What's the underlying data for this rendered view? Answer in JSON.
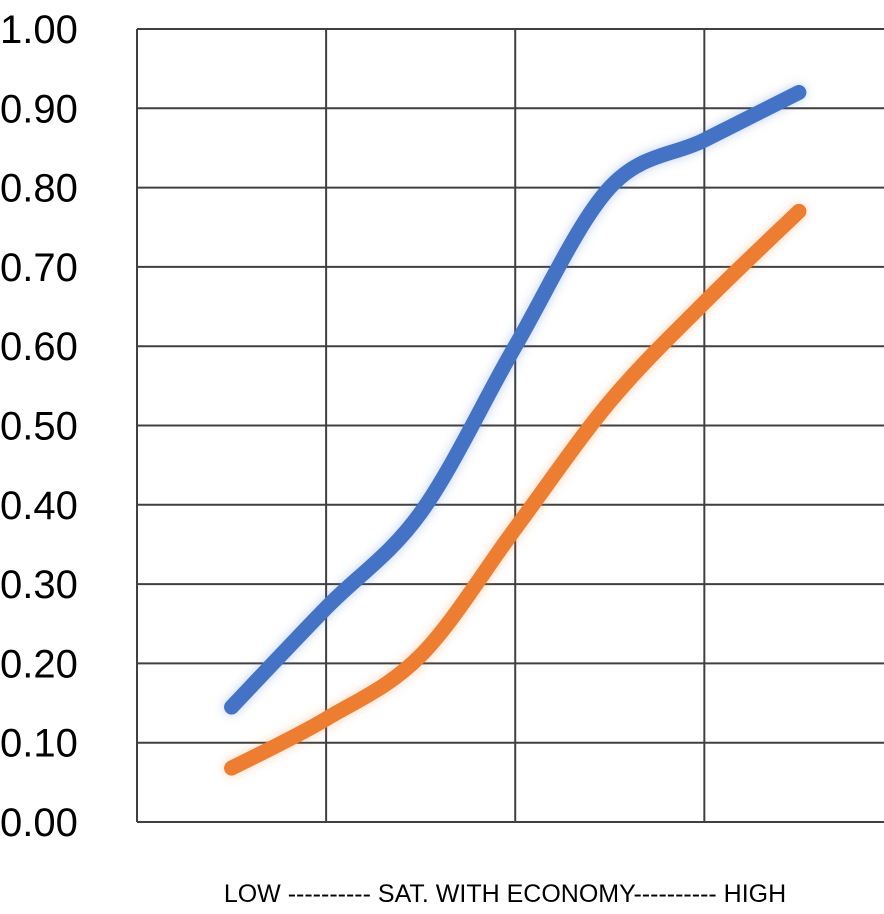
{
  "chart_data": {
    "type": "line",
    "title": "",
    "xlabel": "LOW ---------- SAT. WITH ECONOMY---------- HIGH",
    "ylabel": "",
    "ylim": [
      0,
      1.0
    ],
    "yticks": [
      "0.00",
      "0.10",
      "0.20",
      "0.30",
      "0.40",
      "0.50",
      "0.60",
      "0.70",
      "0.80",
      "0.90",
      "1.00"
    ],
    "x": [
      1,
      2,
      3,
      4
    ],
    "grid": true,
    "series": [
      {
        "color": "#4472C4",
        "values": [
          0.15,
          0.38,
          0.82,
          0.92
        ],
        "curve": [
          [
            0.5,
            0.145
          ],
          [
            1,
            0.27
          ],
          [
            1.5,
            0.39
          ],
          [
            2,
            0.6
          ],
          [
            2.5,
            0.8
          ],
          [
            3,
            0.86
          ],
          [
            3.5,
            0.92
          ]
        ]
      },
      {
        "color": "#ED7D31",
        "values": [
          0.07,
          0.2,
          0.55,
          0.77
        ],
        "curve": [
          [
            0.5,
            0.068
          ],
          [
            1,
            0.13
          ],
          [
            1.5,
            0.21
          ],
          [
            2,
            0.37
          ],
          [
            2.5,
            0.53
          ],
          [
            3,
            0.655
          ],
          [
            3.5,
            0.77
          ]
        ]
      }
    ]
  }
}
